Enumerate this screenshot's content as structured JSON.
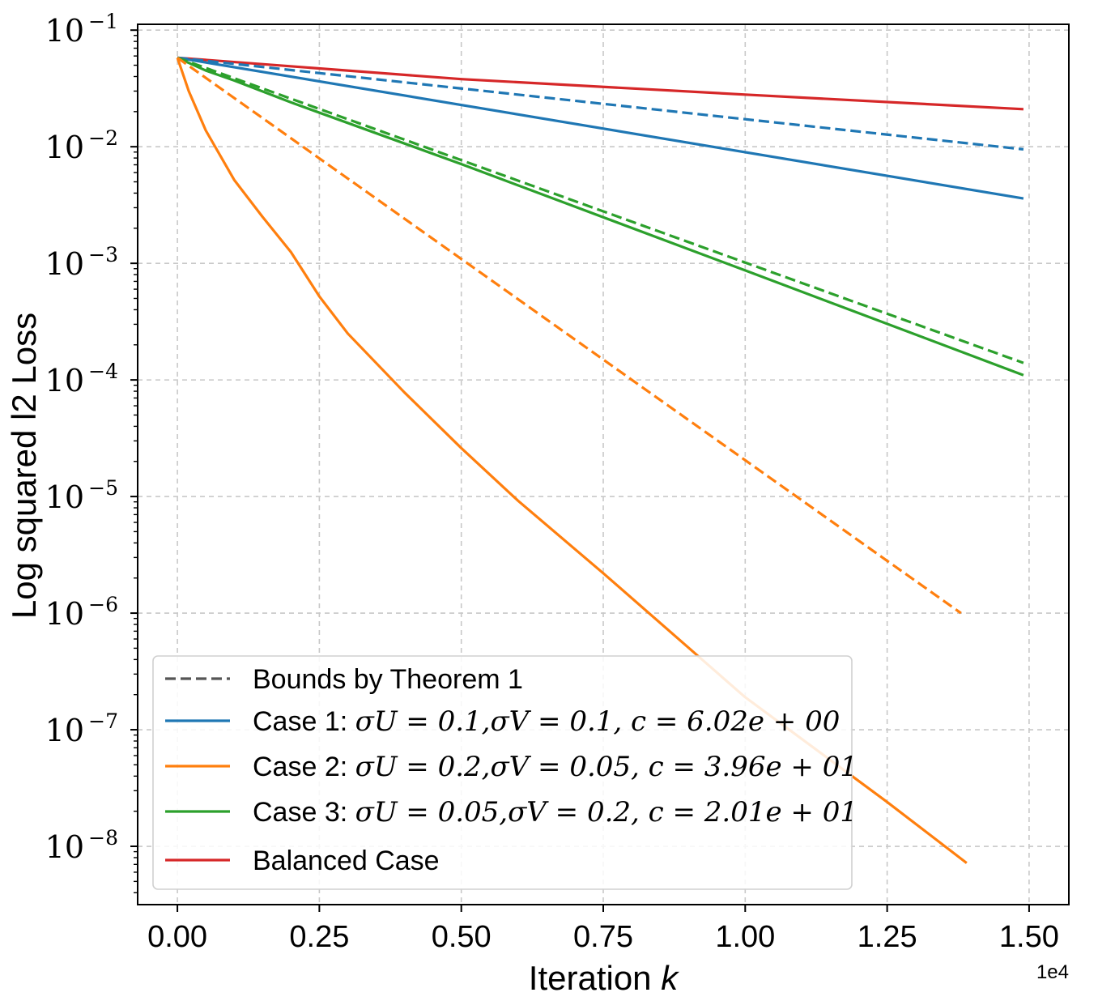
{
  "chart_data": {
    "type": "line",
    "xlabel_prefix": "Iteration ",
    "xlabel_var": "k",
    "ylabel": "Log squared l2 Loss",
    "x_offset_label": "1e4",
    "x_scale": "linear",
    "y_scale": "log",
    "xlim": [
      -0.07,
      1.57
    ],
    "ylim_exp": [
      -8.5,
      -0.95
    ],
    "grid": true,
    "legend_position": "lower-left",
    "x_ticks": [
      0.0,
      0.25,
      0.5,
      0.75,
      1.0,
      1.25,
      1.5
    ],
    "x_tick_labels": [
      "0.00",
      "0.25",
      "0.50",
      "0.75",
      "1.00",
      "1.25",
      "1.50"
    ],
    "y_ticks_exp": [
      -1,
      -2,
      -3,
      -4,
      -5,
      -6,
      -7,
      -8
    ],
    "y_tick_base": "10",
    "y_tick_exp_labels": [
      "−1",
      "−2",
      "−3",
      "−4",
      "−5",
      "−6",
      "−7",
      "−8"
    ],
    "legend": [
      {
        "key": "bounds",
        "text": "Bounds by Theorem 1",
        "math": "",
        "color": "#555555",
        "dashed": true
      },
      {
        "key": "case1",
        "text": "Case 1: ",
        "math": "σU = 0.1,σV = 0.1, c = 6.02e + 00",
        "color": "#1f77b4",
        "dashed": false
      },
      {
        "key": "case2",
        "text": "Case 2: ",
        "math": "σU = 0.2,σV = 0.05, c = 3.96e + 01",
        "color": "#ff7f0e",
        "dashed": false
      },
      {
        "key": "case3",
        "text": "Case 3: ",
        "math": "σU = 0.05,σV = 0.2, c = 2.01e + 01",
        "color": "#2ca02c",
        "dashed": false
      },
      {
        "key": "balanced",
        "text": "Balanced Case",
        "math": "",
        "color": "#d62728",
        "dashed": false
      }
    ],
    "series": [
      {
        "key": "balanced",
        "color": "#d62728",
        "dashed": false,
        "points": [
          [
            0,
            0.058
          ],
          [
            0.5,
            0.038
          ],
          [
            1.0,
            0.028
          ],
          [
            1.49,
            0.021
          ]
        ]
      },
      {
        "key": "bound1",
        "color": "#1f77b4",
        "dashed": true,
        "points": [
          [
            0,
            0.058
          ],
          [
            1.49,
            0.0095
          ]
        ]
      },
      {
        "key": "case1",
        "color": "#1f77b4",
        "dashed": false,
        "points": [
          [
            0,
            0.058
          ],
          [
            1.49,
            0.0036
          ]
        ]
      },
      {
        "key": "bound3",
        "color": "#2ca02c",
        "dashed": true,
        "points": [
          [
            0,
            0.058
          ],
          [
            1.49,
            0.00014
          ]
        ]
      },
      {
        "key": "case3",
        "color": "#2ca02c",
        "dashed": false,
        "points": [
          [
            0,
            0.058
          ],
          [
            0.05,
            0.045
          ],
          [
            0.1,
            0.037
          ],
          [
            0.2,
            0.024
          ],
          [
            0.5,
            0.0071
          ],
          [
            1.0,
            0.00087
          ],
          [
            1.49,
            0.00011
          ]
        ]
      },
      {
        "key": "bound2",
        "color": "#ff7f0e",
        "dashed": true,
        "points": [
          [
            0,
            0.058
          ],
          [
            1.38,
            1e-06
          ]
        ]
      },
      {
        "key": "case2",
        "color": "#ff7f0e",
        "dashed": false,
        "points": [
          [
            0,
            0.058
          ],
          [
            0.02,
            0.03
          ],
          [
            0.05,
            0.0138
          ],
          [
            0.1,
            0.0052
          ],
          [
            0.15,
            0.0025
          ],
          [
            0.2,
            0.00125
          ],
          [
            0.25,
            0.00052
          ],
          [
            0.3,
            0.00025
          ],
          [
            0.4,
            7.8e-05
          ],
          [
            0.5,
            2.6e-05
          ],
          [
            0.6,
            9.2e-06
          ],
          [
            0.75,
            2.2e-06
          ],
          [
            1.0,
            1.9e-07
          ],
          [
            1.25,
            2.4e-08
          ],
          [
            1.39,
            7.2e-09
          ]
        ]
      }
    ]
  }
}
